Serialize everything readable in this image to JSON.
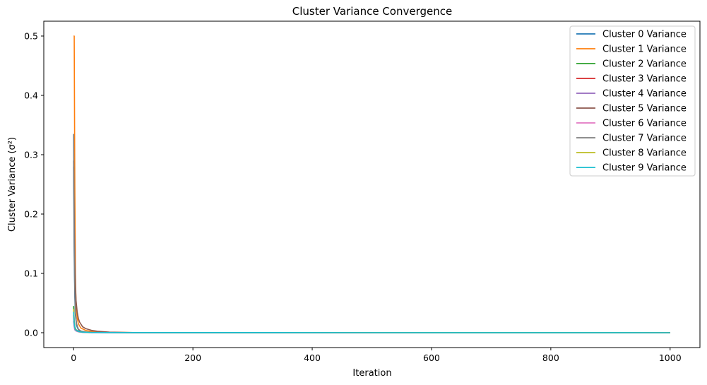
{
  "chart_data": {
    "type": "line",
    "title": "Cluster Variance Convergence",
    "xlabel": "Iteration",
    "ylabel": "Cluster Variance (σ²)",
    "xlim": [
      -50,
      1050
    ],
    "ylim": [
      -0.025,
      0.525
    ],
    "xticks": [
      0,
      200,
      400,
      600,
      800,
      1000
    ],
    "yticks": [
      0.0,
      0.1,
      0.2,
      0.3,
      0.4,
      0.5
    ],
    "xtick_labels": [
      "0",
      "200",
      "400",
      "600",
      "800",
      "1000"
    ],
    "ytick_labels": [
      "0.0",
      "0.1",
      "0.2",
      "0.3",
      "0.4",
      "0.5"
    ],
    "grid": false,
    "legend_position": "top-right",
    "series": [
      {
        "name": "Cluster 0 Variance",
        "color": "#1f77b4",
        "x": [
          0,
          1,
          2,
          3,
          5,
          8,
          12,
          20,
          30,
          50,
          100,
          1000
        ],
        "values": [
          0.28,
          0.13,
          0.06,
          0.03,
          0.012,
          0.005,
          0.002,
          0.001,
          0.0005,
          0.0002,
          0.0001,
          0.0
        ]
      },
      {
        "name": "Cluster 1 Variance",
        "color": "#ff7f0e",
        "x": [
          0,
          1,
          2,
          3,
          4,
          6,
          8,
          12,
          20,
          30,
          50,
          100,
          1000
        ],
        "values": [
          0.5,
          0.5,
          0.25,
          0.1,
          0.05,
          0.025,
          0.015,
          0.008,
          0.004,
          0.002,
          0.0008,
          0.0002,
          0.0
        ]
      },
      {
        "name": "Cluster 2 Variance",
        "color": "#2ca02c",
        "x": [
          0,
          1,
          2,
          4,
          8,
          15,
          30,
          1000
        ],
        "values": [
          0.045,
          0.02,
          0.01,
          0.005,
          0.002,
          0.001,
          0.0003,
          0.0
        ]
      },
      {
        "name": "Cluster 3 Variance",
        "color": "#d62728",
        "x": [
          0,
          1,
          2,
          4,
          8,
          15,
          30,
          1000
        ],
        "values": [
          0.03,
          0.015,
          0.008,
          0.004,
          0.002,
          0.001,
          0.0003,
          0.0
        ]
      },
      {
        "name": "Cluster 4 Variance",
        "color": "#9467bd",
        "x": [
          0,
          1,
          2,
          4,
          8,
          15,
          30,
          1000
        ],
        "values": [
          0.02,
          0.01,
          0.005,
          0.003,
          0.0015,
          0.0007,
          0.0002,
          0.0
        ]
      },
      {
        "name": "Cluster 5 Variance",
        "color": "#8c564b",
        "x": [
          0,
          1,
          2,
          3,
          4,
          6,
          8,
          10,
          15,
          20,
          30,
          40,
          60,
          100,
          1000
        ],
        "values": [
          0.29,
          0.2,
          0.12,
          0.08,
          0.055,
          0.035,
          0.024,
          0.018,
          0.01,
          0.007,
          0.004,
          0.0025,
          0.001,
          0.0002,
          0.0
        ]
      },
      {
        "name": "Cluster 6 Variance",
        "color": "#e377c2",
        "x": [
          0,
          1,
          2,
          4,
          8,
          15,
          30,
          1000
        ],
        "values": [
          0.025,
          0.012,
          0.006,
          0.003,
          0.0015,
          0.0007,
          0.0002,
          0.0
        ]
      },
      {
        "name": "Cluster 7 Variance",
        "color": "#7f7f7f",
        "x": [
          0,
          1,
          2,
          3,
          5,
          8,
          12,
          20,
          30,
          50,
          100,
          1000
        ],
        "values": [
          0.335,
          0.15,
          0.07,
          0.035,
          0.015,
          0.006,
          0.003,
          0.0015,
          0.0008,
          0.0003,
          0.0001,
          0.0
        ]
      },
      {
        "name": "Cluster 8 Variance",
        "color": "#bcbd22",
        "x": [
          0,
          1,
          2,
          4,
          8,
          15,
          30,
          1000
        ],
        "values": [
          0.04,
          0.018,
          0.009,
          0.004,
          0.002,
          0.001,
          0.0003,
          0.0
        ]
      },
      {
        "name": "Cluster 9 Variance",
        "color": "#17becf",
        "x": [
          0,
          1,
          2,
          4,
          8,
          15,
          30,
          1000
        ],
        "values": [
          0.035,
          0.016,
          0.008,
          0.004,
          0.002,
          0.001,
          0.0003,
          0.0
        ]
      }
    ]
  }
}
